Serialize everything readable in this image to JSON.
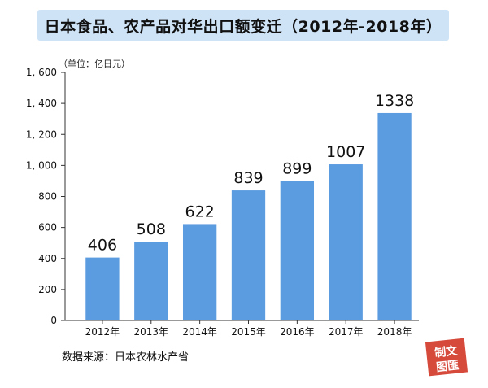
{
  "title": "日本食品、农产品对华出口额变迁（2012年-2018年）",
  "unit": "（单位：亿日元）",
  "source": "数据来源：日本农林水产省",
  "seal": {
    "line1": "制文",
    "line2": "图匯"
  },
  "colors": {
    "bar": "#5b9be0",
    "title_bg": "#cfe3f6",
    "seal": "#d64a3c"
  },
  "chart_data": {
    "type": "bar",
    "categories": [
      "2012年",
      "2013年",
      "2014年",
      "2015年",
      "2016年",
      "2017年",
      "2018年"
    ],
    "values": [
      406,
      508,
      622,
      839,
      899,
      1007,
      1338
    ],
    "data_labels": [
      "406",
      "508",
      "622",
      "839",
      "899",
      "1007",
      "1338"
    ],
    "yticks": [
      0,
      200,
      400,
      600,
      800,
      1000,
      1200,
      1400,
      1600
    ],
    "ytick_labels": [
      "0",
      "200",
      "400",
      "600",
      "800",
      "1, 000",
      "1, 200",
      "1, 400",
      "1, 600"
    ],
    "ylim": [
      0,
      1600
    ],
    "grid": false,
    "legend": "none"
  }
}
